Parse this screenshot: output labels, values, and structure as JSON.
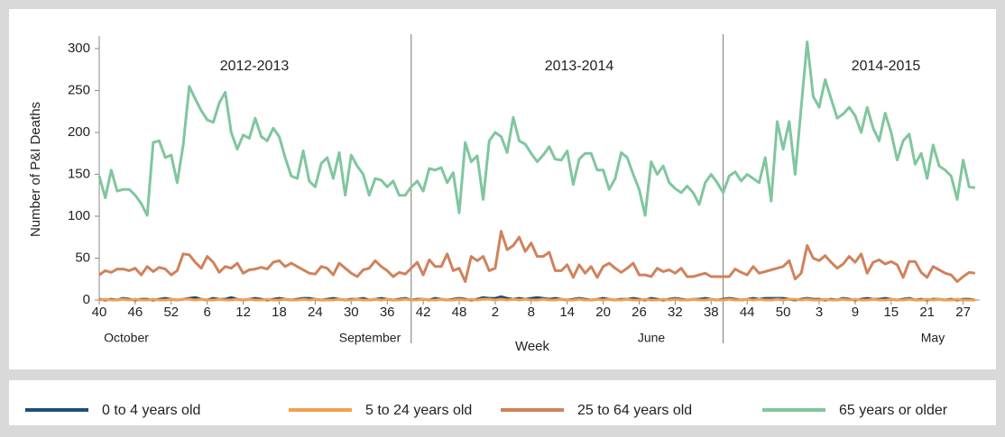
{
  "chart_data": {
    "type": "line",
    "y_label": "Number of P&I Deaths",
    "x_label": "Week",
    "seasons": [
      "2012-2013",
      "2013-2014",
      "2014-2015"
    ],
    "months": [
      "October",
      "September",
      "June",
      "May"
    ],
    "categories": [
      "40",
      null,
      null,
      null,
      null,
      null,
      "46",
      null,
      null,
      null,
      null,
      null,
      "52",
      null,
      null,
      null,
      null,
      null,
      "6",
      null,
      null,
      null,
      null,
      null,
      "12",
      null,
      null,
      null,
      null,
      null,
      "18",
      null,
      null,
      null,
      null,
      null,
      "24",
      null,
      null,
      null,
      null,
      null,
      "30",
      null,
      null,
      null,
      null,
      null,
      "36",
      null,
      null,
      null,
      null,
      null,
      "42",
      null,
      null,
      null,
      null,
      null,
      "48",
      null,
      null,
      null,
      null,
      null,
      "2",
      null,
      null,
      null,
      null,
      null,
      "8",
      null,
      null,
      null,
      null,
      null,
      "14",
      null,
      null,
      null,
      null,
      null,
      "20",
      null,
      null,
      null,
      null,
      null,
      "26",
      null,
      null,
      null,
      null,
      null,
      "32",
      null,
      null,
      null,
      null,
      null,
      "38",
      null,
      null,
      null,
      null,
      null,
      "44",
      null,
      null,
      null,
      null,
      null,
      "50",
      null,
      null,
      null,
      null,
      null,
      "3",
      null,
      null,
      null,
      null,
      null,
      "9",
      null,
      null,
      null,
      null,
      null,
      "15",
      null,
      null,
      null,
      null,
      null,
      "21",
      null,
      null,
      null,
      null,
      null,
      "27",
      null,
      null
    ],
    "ylim": [
      0,
      315
    ],
    "yticks": [
      0,
      50,
      100,
      150,
      200,
      250,
      300
    ],
    "series": [
      {
        "name": "0 to 4 years old",
        "color": "#1f4e79",
        "values": [
          1,
          0,
          1,
          0,
          2,
          1,
          0,
          1,
          1,
          0,
          1,
          2,
          1,
          0,
          1,
          2,
          3,
          1,
          0,
          2,
          1,
          1,
          3,
          1,
          0,
          1,
          2,
          1,
          0,
          1,
          2,
          1,
          0,
          1,
          2,
          2,
          1,
          0,
          1,
          2,
          1,
          0,
          1,
          1,
          2,
          0,
          1,
          2,
          1,
          0,
          1,
          2,
          0,
          1,
          1,
          0,
          2,
          1,
          0,
          1,
          2,
          1,
          0,
          1,
          3,
          2,
          2,
          4,
          2,
          1,
          2,
          1,
          2,
          3,
          2,
          1,
          2,
          1,
          0,
          1,
          2,
          1,
          0,
          1,
          2,
          1,
          0,
          1,
          1,
          2,
          1,
          0,
          2,
          1,
          0,
          1,
          2,
          1,
          0,
          1,
          1,
          2,
          1,
          0,
          1,
          2,
          1,
          0,
          1,
          2,
          1,
          2,
          2,
          2,
          2,
          1,
          0,
          1,
          2,
          1,
          1,
          0,
          1,
          0,
          2,
          1,
          0,
          1,
          2,
          1,
          1,
          2,
          1,
          0,
          1,
          2,
          0,
          1,
          0,
          1,
          1,
          0,
          1,
          0,
          1,
          1,
          0
        ]
      },
      {
        "name": "5 to 24 years old",
        "color": "#f4a04c",
        "values": [
          0,
          1,
          0,
          0,
          1,
          0,
          1,
          0,
          0,
          1,
          0,
          0,
          1,
          0,
          1,
          1,
          0,
          1,
          0,
          0,
          1,
          0,
          0,
          1,
          0,
          1,
          0,
          0,
          1,
          0,
          0,
          1,
          0,
          0,
          1,
          0,
          1,
          0,
          0,
          0,
          1,
          0,
          0,
          1,
          0,
          0,
          1,
          0,
          1,
          0,
          0,
          1,
          0,
          0,
          1,
          0,
          0,
          1,
          0,
          0,
          1,
          0,
          1,
          0,
          1,
          1,
          0,
          1,
          0,
          1,
          0,
          1,
          0,
          0,
          1,
          0,
          0,
          1,
          0,
          0,
          1,
          0,
          0,
          1,
          0,
          1,
          0,
          0,
          1,
          0,
          0,
          1,
          0,
          0,
          1,
          0,
          1,
          0,
          0,
          1,
          0,
          0,
          1,
          0,
          0,
          1,
          0,
          0,
          1,
          0,
          1,
          0,
          0,
          1,
          0,
          1,
          1,
          0,
          1,
          0,
          0,
          1,
          0,
          0,
          1,
          0,
          1,
          0,
          0,
          1,
          0,
          0,
          1,
          0,
          0,
          1,
          0,
          0,
          1,
          0,
          1,
          0,
          0,
          1,
          0,
          0,
          0
        ]
      },
      {
        "name": "25 to 64 years old",
        "color": "#d0825c",
        "values": [
          30,
          35,
          33,
          37,
          37,
          35,
          38,
          30,
          40,
          34,
          39,
          37,
          30,
          35,
          55,
          54,
          45,
          38,
          52,
          45,
          33,
          40,
          38,
          44,
          32,
          36,
          37,
          39,
          37,
          45,
          47,
          40,
          44,
          40,
          36,
          32,
          31,
          40,
          38,
          30,
          44,
          38,
          32,
          28,
          36,
          38,
          47,
          40,
          35,
          28,
          33,
          31,
          38,
          45,
          30,
          48,
          40,
          40,
          55,
          35,
          38,
          22,
          52,
          47,
          52,
          35,
          38,
          82,
          60,
          65,
          75,
          58,
          68,
          52,
          52,
          57,
          35,
          35,
          42,
          27,
          42,
          32,
          40,
          27,
          40,
          44,
          38,
          33,
          38,
          44,
          30,
          30,
          28,
          38,
          34,
          36,
          32,
          38,
          28,
          28,
          30,
          32,
          28,
          28,
          28,
          28,
          37,
          33,
          30,
          40,
          32,
          34,
          36,
          38,
          40,
          47,
          25,
          32,
          65,
          50,
          47,
          53,
          45,
          38,
          43,
          52,
          45,
          55,
          32,
          45,
          48,
          43,
          46,
          42,
          27,
          46,
          46,
          33,
          27,
          40,
          36,
          32,
          30,
          22,
          28,
          33,
          32
        ]
      },
      {
        "name": "65 years or older",
        "color": "#80c69e",
        "values": [
          148,
          122,
          155,
          130,
          132,
          132,
          125,
          115,
          101,
          188,
          190,
          170,
          173,
          140,
          185,
          255,
          240,
          226,
          215,
          212,
          235,
          248,
          200,
          180,
          197,
          193,
          217,
          195,
          190,
          205,
          195,
          170,
          148,
          145,
          178,
          142,
          135,
          163,
          170,
          145,
          176,
          125,
          173,
          160,
          150,
          125,
          145,
          143,
          135,
          142,
          125,
          125,
          135,
          142,
          130,
          157,
          155,
          158,
          140,
          152,
          104,
          188,
          165,
          172,
          120,
          190,
          200,
          195,
          176,
          218,
          190,
          186,
          175,
          165,
          173,
          183,
          168,
          167,
          178,
          138,
          168,
          175,
          175,
          155,
          155,
          132,
          145,
          176,
          170,
          150,
          132,
          101,
          165,
          150,
          160,
          140,
          133,
          128,
          136,
          128,
          114,
          140,
          150,
          140,
          128,
          148,
          153,
          142,
          150,
          145,
          140,
          170,
          118,
          213,
          180,
          213,
          150,
          230,
          308,
          243,
          230,
          263,
          240,
          217,
          222,
          230,
          220,
          200,
          230,
          205,
          190,
          223,
          200,
          167,
          190,
          198,
          162,
          175,
          145,
          185,
          160,
          155,
          148,
          120,
          167,
          135,
          134
        ]
      }
    ]
  }
}
